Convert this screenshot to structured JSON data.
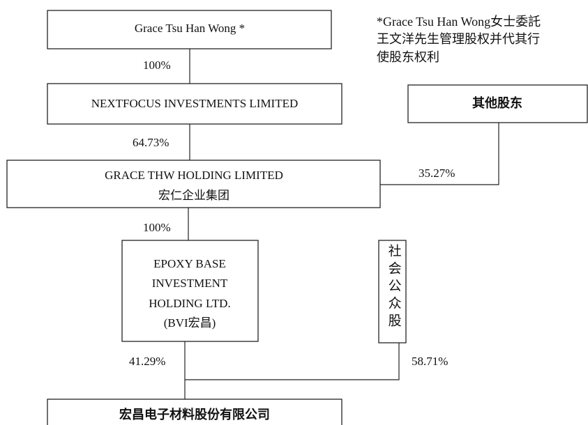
{
  "note": [
    "*Grace Tsu Han Wong女士委託",
    "王文洋先生管理股权并代其行",
    "使股东权利"
  ],
  "nodes": [
    {
      "lines": [
        "Grace Tsu Han Wong *"
      ]
    },
    {
      "lines": [
        "NEXTFOCUS INVESTMENTS LIMITED"
      ]
    },
    {
      "lines": [
        "其他股东"
      ]
    },
    {
      "lines": [
        "GRACE THW HOLDING LIMITED",
        "宏仁企业集团"
      ]
    },
    {
      "lines": [
        "EPOXY BASE",
        "INVESTMENT",
        "HOLDING LTD.",
        "(BVI宏昌)"
      ]
    },
    {
      "lines": [
        "社会公众股"
      ]
    },
    {
      "lines": [
        "宏昌电子材料股份有限公司"
      ]
    }
  ],
  "edges": [
    {
      "label": "100%"
    },
    {
      "label": "64.73%"
    },
    {
      "label": "35.27%"
    },
    {
      "label": "100%"
    },
    {
      "label": "41.29%"
    },
    {
      "label": "58.71%"
    }
  ]
}
